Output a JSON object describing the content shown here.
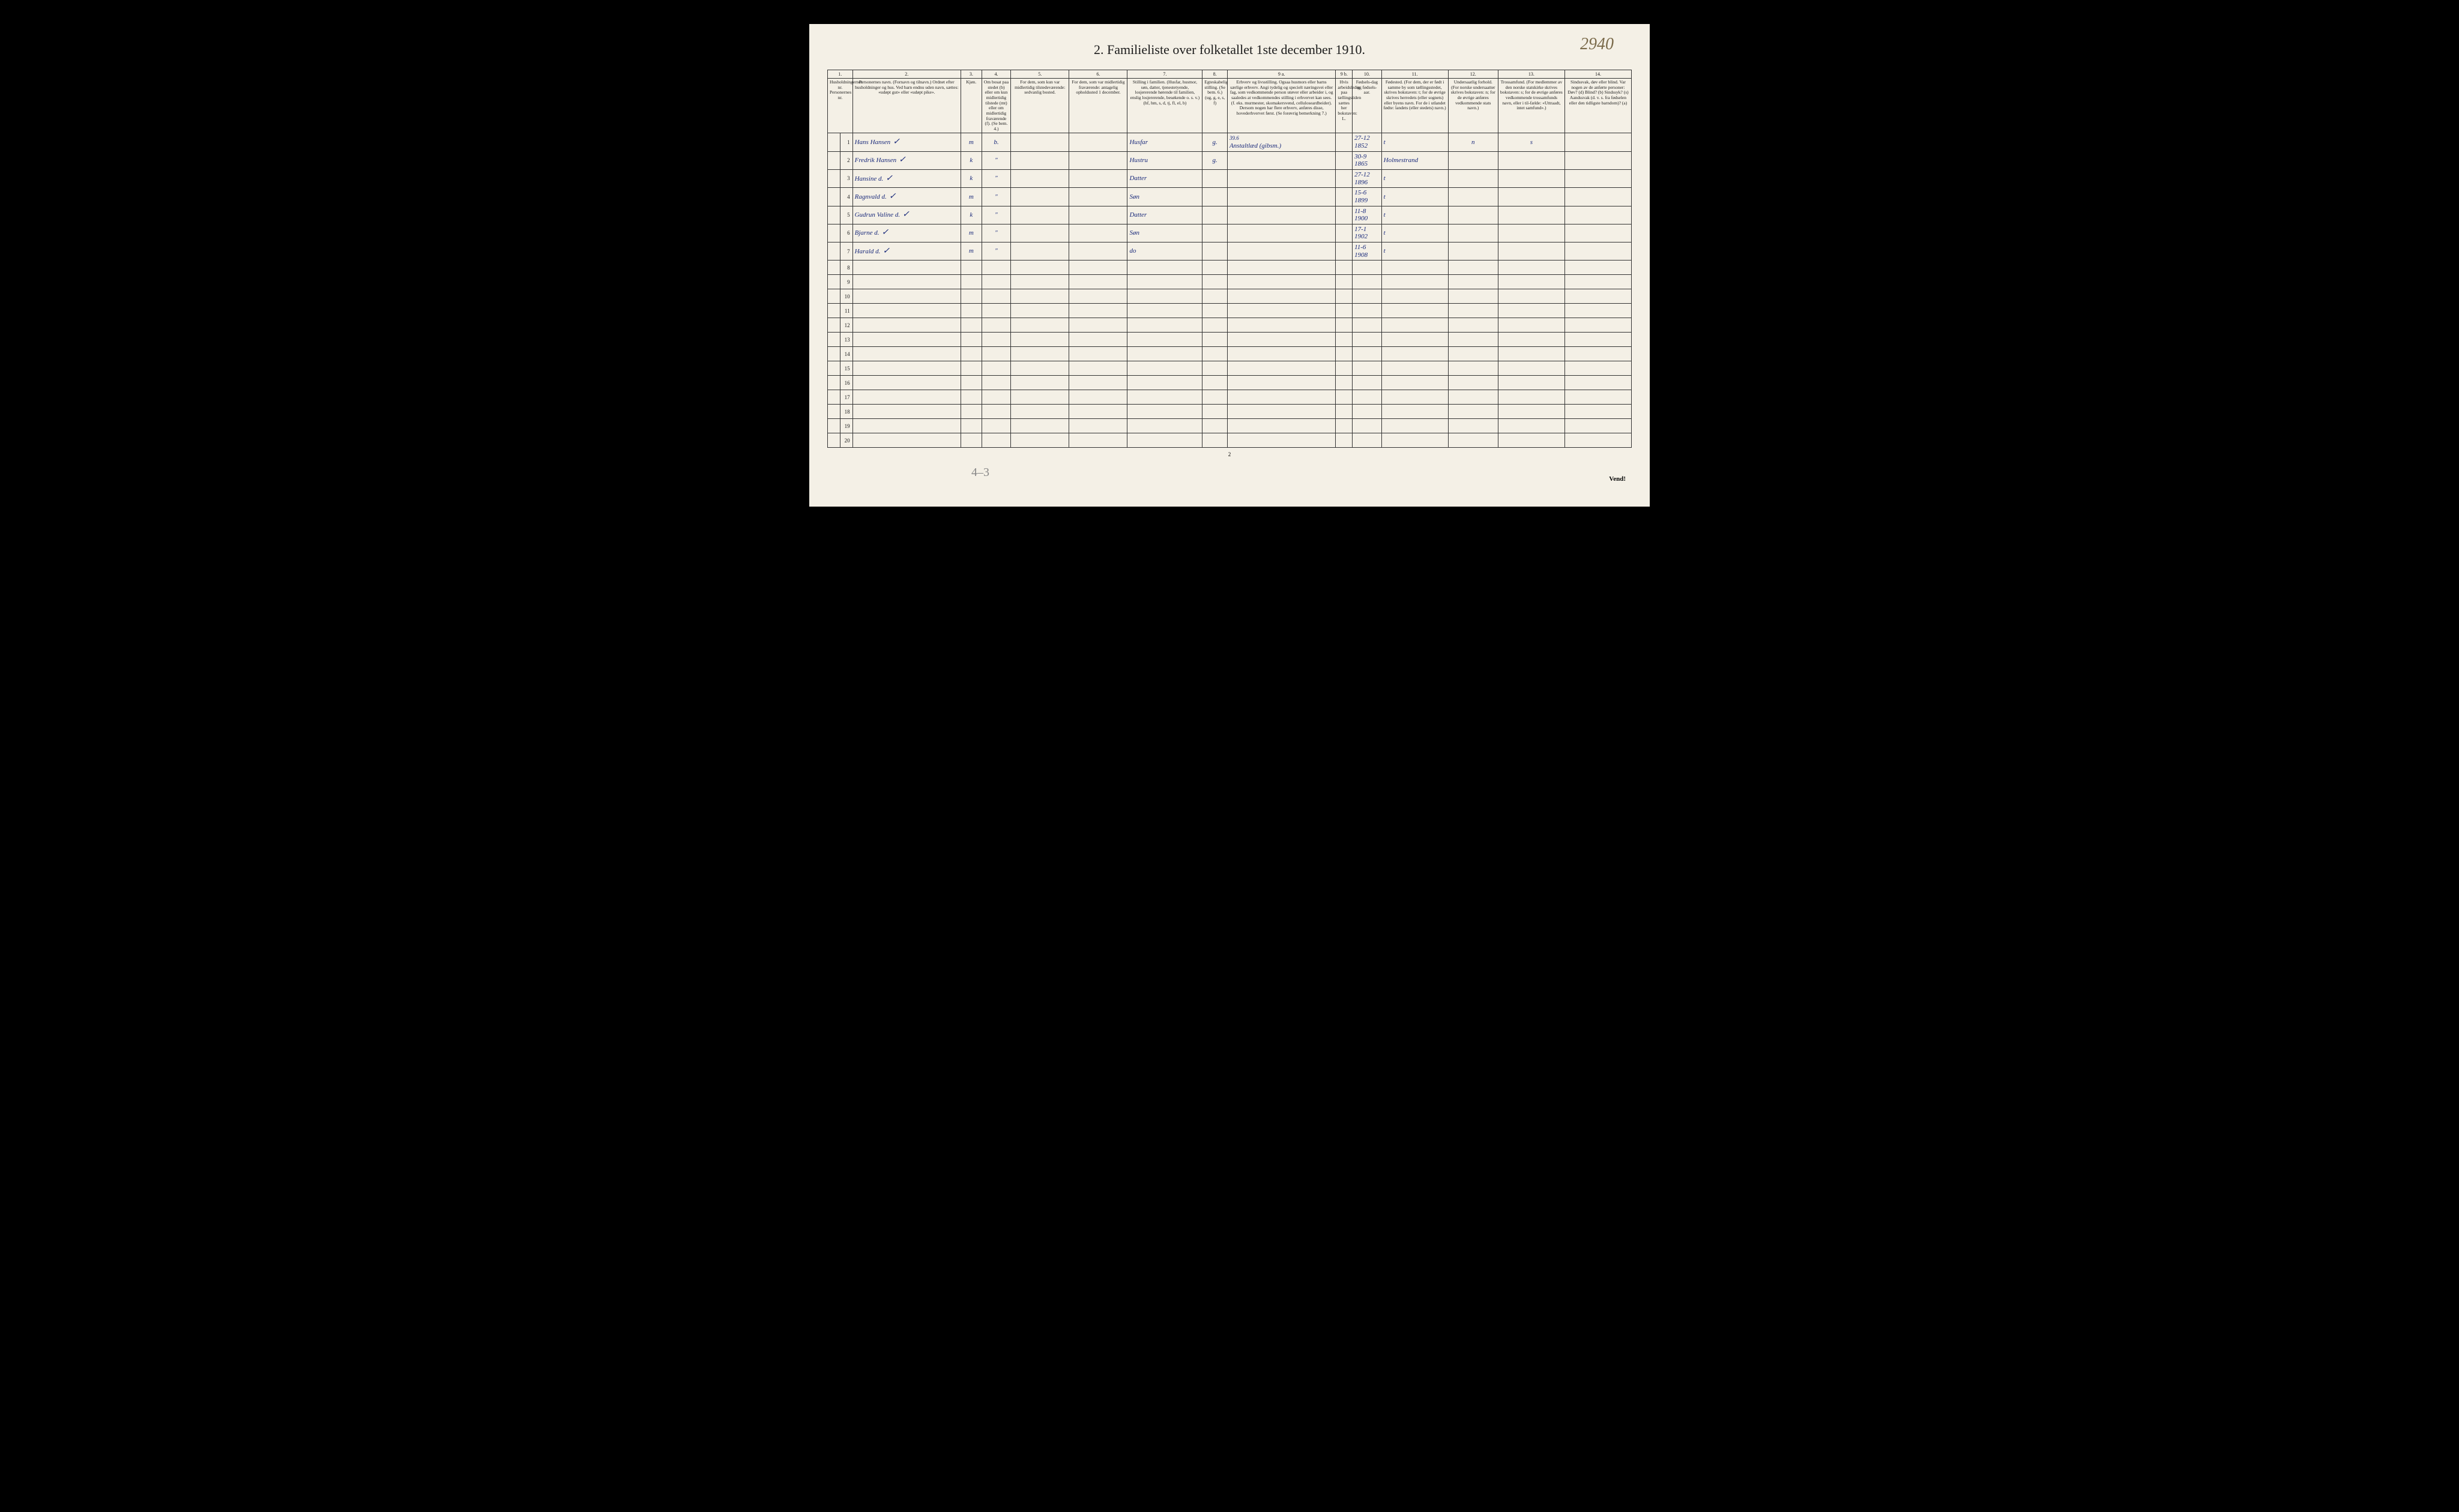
{
  "title": "2.  Familieliste over folketallet 1ste december 1910.",
  "archive_number": "2940",
  "pencil_note": "4–3",
  "page_number": "2",
  "vend": "Vend!",
  "header_numbers": [
    "1.",
    "2.",
    "3.",
    "4.",
    "5.",
    "6.",
    "7.",
    "8.",
    "9 a.",
    "9 b.",
    "10.",
    "11.",
    "12.",
    "13.",
    "14."
  ],
  "headers": {
    "col1": "Husholdningernes nr.\nPersonernes nr.",
    "col2": "Personernes navn.\n(Fornavn og tilnavn.)\nOrdnet efter husholdninger og hus.\nVed barn endnu uden navn, sættes: «udøpt gut» eller «udøpt pike».",
    "col3": "Kjøn.",
    "col3_sub": "Mand.  Kvinder.\nm.   k.",
    "col4": "Om bosat paa stedet (b) eller om kun midlertidig tilstede (mt) eller om midlertidig fraværende (f).\n(Se bem. 4.)",
    "col5": "For dem, som kun var midlertidig tilstedeværende:\nsedvanlig bosted.",
    "col6": "For dem, som var midlertidig fraværende:\nantagelig opholdssted 1 december.",
    "col7": "Stilling i familien.\n(Husfar, husmor, søn, datter, tjenestetyende, losjererende hørende til familien, enslig losjererende, besøkende o. s. v.)\n(hf, hm, s, d, tj, fl, el, b)",
    "col8": "Egteskabelig stilling.\n(Se bem. 6.)\n(ug, g, e, s, f)",
    "col9a": "Erhverv og livsstilling.\nOgsaa husmors eller barns særlige erhverv.\nAngi tydelig og specielt næringsvei eller fag, som vedkommende person utøver eller arbeider i, og saaledes at vedkommendes stilling i erhvervet kan sees. (f. eks. murmester, skomakersvend, celluloseardbeider). Dersom nogen har flere erhverv, anføres disse, hovederhvervet først.\n(Se forøvrig bemerkning 7.)",
    "col9b": "Hvis arbeidsledig paa tællingstiden sættes her bokstaven: L.",
    "col10": "Fødsels-dag og fødsels-aar.",
    "col11": "Fødested.\n(For dem, der er født i samme by som tællingsstedet, skrives bokstaven: t; for de øvrige skrives herredets (eller sognets) eller byens navn.\nFor de i utlandet fødte: landets (eller stedets) navn.)",
    "col12": "Undersaatlig forhold.\n(For norske undersaatter skrives bokstaven: n; for de øvrige anføres vedkommende stats navn.)",
    "col13": "Trossamfund.\n(For medlemmer av den norske statskirke skrives bokstaven: s; for de øvrige anføres vedkommende trossamfunds navn, eller i til-fælde: «Uttraadt, intet samfund».)",
    "col14": "Sindssvak, døv eller blind.\nVar nogen av de anførte personer:\nDøv?      (d)\nBlind?    (b)\nSindssyk? (s)\nAandssvak (d. v. s. fra fødselen eller den tidligste barndom)? (a)"
  },
  "rows": [
    {
      "num": "1",
      "name": "Hans Hansen",
      "check": "✓",
      "sex": "m",
      "resident": "b.",
      "stilling": "Husfar",
      "egteskap": "g.",
      "erhverv": "Anstaltlæd (gibsm.)",
      "erhverv_note": "39.6",
      "fodsel": "27-12\n1852",
      "fodested": "t",
      "undersaat": "n",
      "tros": "s"
    },
    {
      "num": "2",
      "name": "Fredrik Hansen",
      "check": "✓",
      "sex": "k",
      "resident": "\"",
      "stilling": "Hustru",
      "egteskap": "g.",
      "fodsel": "30-9\n1865",
      "fodested": "Holmestrand",
      "undersaat": "",
      "tros": ""
    },
    {
      "num": "3",
      "name": "Hansine   d.",
      "check": "✓",
      "sex": "k",
      "resident": "\"",
      "stilling": "Datter",
      "fodsel": "27-12\n1896",
      "fodested": "t",
      "undersaat": "",
      "tros": ""
    },
    {
      "num": "4",
      "name": "Ragnvald   d.",
      "check": "✓",
      "sex": "m",
      "resident": "\"",
      "stilling": "Søn",
      "fodsel": "15-6\n1899",
      "fodested": "t",
      "undersaat": "",
      "tros": ""
    },
    {
      "num": "5",
      "name": "Gudrun Valine d.",
      "check": "✓",
      "sex": "k",
      "resident": "\"",
      "stilling": "Datter",
      "fodsel": "11-8\n1900",
      "fodested": "t",
      "undersaat": "",
      "tros": ""
    },
    {
      "num": "6",
      "name": "Bjarne   d.",
      "check": "✓",
      "sex": "m",
      "resident": "\"",
      "stilling": "Søn",
      "fodsel": "17-1\n1902",
      "fodested": "t",
      "undersaat": "",
      "tros": ""
    },
    {
      "num": "7",
      "name": "Harald   d.",
      "check": "✓",
      "sex": "m",
      "resident": "\"",
      "stilling": "do",
      "fodsel": "11-6\n1908",
      "fodested": "t",
      "undersaat": "",
      "tros": ""
    },
    {
      "num": "8"
    },
    {
      "num": "9"
    },
    {
      "num": "10"
    },
    {
      "num": "11"
    },
    {
      "num": "12"
    },
    {
      "num": "13"
    },
    {
      "num": "14"
    },
    {
      "num": "15"
    },
    {
      "num": "16"
    },
    {
      "num": "17"
    },
    {
      "num": "18"
    },
    {
      "num": "19"
    },
    {
      "num": "20"
    }
  ],
  "colors": {
    "paper": "#f4f0e6",
    "ink": "#1a1a1a",
    "handwriting": "#1a2a7a",
    "pencil": "#888888",
    "archive": "#7a6a4a",
    "border": "#333333"
  }
}
